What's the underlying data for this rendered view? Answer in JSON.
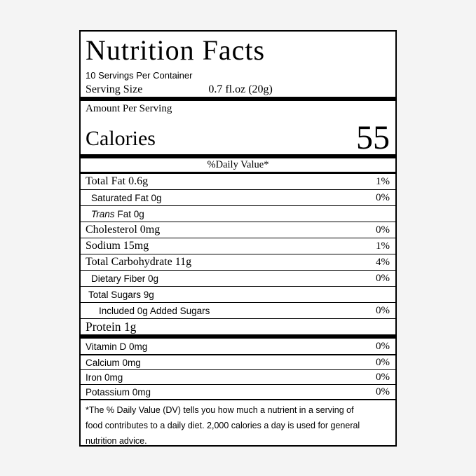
{
  "colors": {
    "page_bg": "#f4f4f4",
    "label_bg": "#ffffff",
    "line": "#000000",
    "text": "#000000"
  },
  "label": {
    "title": "Nutrition Facts",
    "servings_per_container": "10 Servings Per Container",
    "serving_size_label": "Serving Size",
    "serving_size_value": "0.7 fl.oz (20g)",
    "amount_per_serving": "Amount Per Serving",
    "calories_label": "Calories",
    "calories_value": "55",
    "daily_value_header": "%Daily Value*",
    "nutrients": [
      {
        "name": "Total Fat 0.6g",
        "dv": "1%"
      },
      {
        "name": "Saturated Fat 0g",
        "dv": "0%"
      },
      {
        "name_italic": "Trans",
        "name": "Fat 0g",
        "dv": ""
      },
      {
        "name": "Cholesterol 0mg",
        "dv": "0%"
      },
      {
        "name": "Sodium 15mg",
        "dv": "1%"
      },
      {
        "name": "Total Carbohydrate 11g",
        "dv": "4%"
      },
      {
        "name": "Dietary Fiber 0g",
        "dv": "0%"
      },
      {
        "name": "Total Sugars 9g",
        "dv": ""
      },
      {
        "name": "Included 0g Added Sugars",
        "dv": "0%"
      },
      {
        "name": "Protein 1g",
        "dv": ""
      }
    ],
    "vitamins": [
      {
        "name": "Vitamin D 0mg",
        "dv": "0%"
      },
      {
        "name": "Calcium 0mg",
        "dv": "0%"
      },
      {
        "name": "Iron 0mg",
        "dv": "0%"
      },
      {
        "name": "Potassium 0mg",
        "dv": "0%"
      }
    ],
    "footnote_lines": [
      "*The % Daily Value (DV) tells you how much a nutrient in a serving of",
      "food contributes to a daily diet. 2,000 calories a day is used for general",
      "nutrition advice."
    ]
  }
}
